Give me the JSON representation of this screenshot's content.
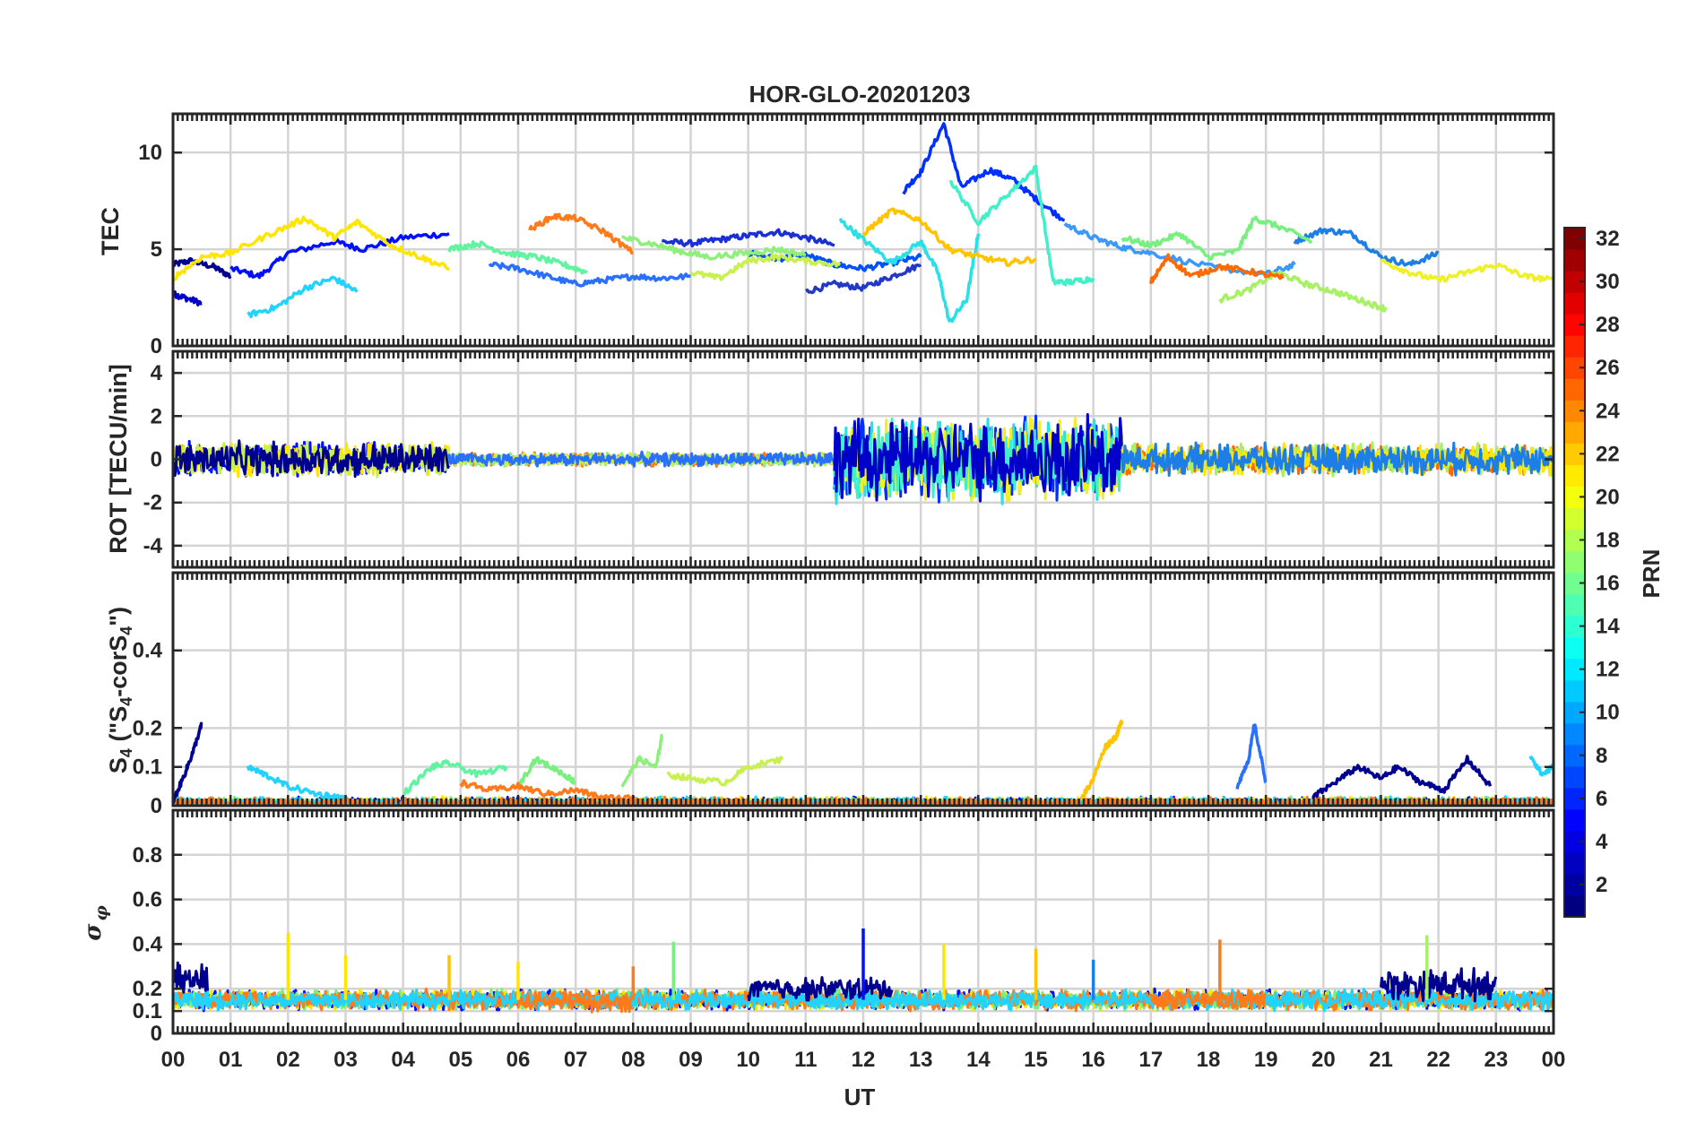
{
  "chart_data": [
    {
      "type": "line",
      "title": "HOR-GLO-20201203",
      "ylabel": "TEC",
      "ylim": [
        0,
        12
      ],
      "yticks": [
        "0",
        "5",
        "10"
      ],
      "yticks_values": [
        0,
        5,
        10
      ],
      "xlim": [
        0,
        24
      ],
      "grid": true,
      "series": [
        {
          "prn": 1,
          "color": "#00008f",
          "x": [
            0.0,
            0.3,
            0.7,
            1.0
          ],
          "y": [
            4.2,
            4.4,
            4.1,
            3.6
          ]
        },
        {
          "prn": 2,
          "color": "#0000c8",
          "x": [
            0.0,
            0.2,
            0.5
          ],
          "y": [
            2.7,
            2.5,
            2.2
          ]
        },
        {
          "prn": 3,
          "color": "#0010ff",
          "x": [
            1.0,
            1.5,
            2.0,
            2.8,
            3.3,
            4.0,
            4.8
          ],
          "y": [
            4.0,
            3.6,
            4.8,
            5.4,
            5.0,
            5.6,
            5.8
          ]
        },
        {
          "prn": 4,
          "color": "#1a2fd6",
          "x": [
            8.5,
            9.0,
            9.5,
            10.0,
            10.5,
            11.0,
            11.5
          ],
          "y": [
            5.4,
            5.3,
            5.5,
            5.7,
            5.9,
            5.6,
            5.2
          ]
        },
        {
          "prn": 5,
          "color": "#2238c8",
          "x": [
            11.0,
            11.5,
            12.0,
            12.5,
            13.0
          ],
          "y": [
            2.8,
            3.2,
            3.0,
            3.6,
            4.2
          ]
        },
        {
          "prn": 6,
          "color": "#0030ff",
          "x": [
            12.7,
            13.0,
            13.4,
            13.7,
            14.2,
            14.6,
            15.0,
            15.5
          ],
          "y": [
            8.0,
            9.0,
            11.5,
            8.2,
            9.1,
            8.6,
            7.6,
            6.5
          ]
        },
        {
          "prn": 7,
          "color": "#0050ff",
          "x": [
            10.0,
            10.5,
            11.0,
            11.5,
            12.0,
            12.5,
            13.0
          ],
          "y": [
            4.8,
            4.5,
            4.7,
            4.2,
            4.0,
            4.3,
            4.6
          ]
        },
        {
          "prn": 8,
          "color": "#2a70ff",
          "x": [
            5.5,
            6.0,
            6.5,
            7.0,
            7.5,
            8.0,
            8.5,
            9.0
          ],
          "y": [
            4.2,
            4.0,
            3.6,
            3.2,
            3.4,
            3.6,
            3.5,
            3.6
          ]
        },
        {
          "prn": 9,
          "color": "#1e7ee8",
          "x": [
            19.5,
            20.0,
            20.5,
            21.0,
            21.5,
            22.0
          ],
          "y": [
            5.4,
            6.0,
            5.8,
            4.6,
            4.2,
            4.8
          ]
        },
        {
          "prn": 10,
          "color": "#3a98ff",
          "x": [
            15.5,
            16.0,
            16.5,
            17.0,
            18.0,
            19.0,
            19.5
          ],
          "y": [
            6.3,
            5.6,
            5.1,
            4.8,
            4.1,
            3.7,
            4.2
          ]
        },
        {
          "prn": 12,
          "color": "#20d4ff",
          "x": [
            1.3,
            1.8,
            2.3,
            2.8,
            3.2
          ],
          "y": [
            1.6,
            2.0,
            3.0,
            3.5,
            2.8
          ]
        },
        {
          "prn": 13,
          "color": "#28e0e6",
          "x": [
            11.6,
            12.0,
            12.5,
            13.0,
            13.3,
            13.5,
            13.8,
            14.0
          ],
          "y": [
            6.5,
            5.5,
            4.3,
            5.4,
            3.8,
            1.2,
            2.4,
            5.8
          ]
        },
        {
          "prn": 14,
          "color": "#40f0c8",
          "x": [
            13.5,
            14.0,
            14.5,
            15.0,
            15.3,
            15.6,
            16.0
          ],
          "y": [
            8.6,
            6.4,
            7.8,
            9.2,
            3.3,
            3.3,
            3.5
          ]
        },
        {
          "prn": 15,
          "color": "#60f4a0",
          "x": [
            4.8,
            5.3,
            5.8,
            6.3,
            6.8,
            7.2
          ],
          "y": [
            5.0,
            5.3,
            4.8,
            4.6,
            4.2,
            3.8
          ]
        },
        {
          "prn": 16,
          "color": "#78f080",
          "x": [
            16.5,
            17.0,
            17.5,
            18.0,
            18.5,
            18.8,
            19.2,
            19.8
          ],
          "y": [
            5.6,
            5.2,
            5.8,
            4.6,
            4.9,
            6.6,
            6.2,
            5.4
          ]
        },
        {
          "prn": 17,
          "color": "#8ef07a",
          "x": [
            7.8,
            8.3,
            8.8,
            9.3,
            10.0,
            10.5,
            11.0
          ],
          "y": [
            5.6,
            5.3,
            4.9,
            4.6,
            4.8,
            5.0,
            4.7
          ]
        },
        {
          "prn": 18,
          "color": "#a8f064",
          "x": [
            18.2,
            18.7,
            19.2,
            19.7,
            20.2,
            20.7,
            21.1
          ],
          "y": [
            2.4,
            2.9,
            3.8,
            3.2,
            2.8,
            2.3,
            1.9
          ]
        },
        {
          "prn": 19,
          "color": "#c8f050",
          "x": [
            9.0,
            9.5,
            10.0,
            10.5,
            11.0,
            11.6
          ],
          "y": [
            3.8,
            3.5,
            4.4,
            4.6,
            4.4,
            4.2
          ]
        },
        {
          "prn": 20,
          "color": "#f0f028",
          "x": [
            21.0,
            21.5,
            22.0,
            22.5,
            23.0,
            23.5,
            24.0
          ],
          "y": [
            4.4,
            3.8,
            3.4,
            3.8,
            4.2,
            3.6,
            3.4
          ]
        },
        {
          "prn": 21,
          "color": "#ffe600",
          "x": [
            0.0,
            0.5,
            1.0,
            1.7,
            2.3,
            2.8,
            3.2,
            3.8,
            4.3,
            4.8
          ],
          "y": [
            3.5,
            4.6,
            4.8,
            5.8,
            6.6,
            5.6,
            6.4,
            5.2,
            4.6,
            4.0
          ]
        },
        {
          "prn": 22,
          "color": "#ffc400",
          "x": [
            12.0,
            12.5,
            13.0,
            13.5,
            14.0,
            14.5,
            15.0
          ],
          "y": [
            5.8,
            7.0,
            6.5,
            5.0,
            4.6,
            4.3,
            4.5
          ]
        },
        {
          "prn": 24,
          "color": "#ff7a1a",
          "x": [
            6.2,
            6.6,
            7.0,
            7.5,
            8.0
          ],
          "y": [
            6.0,
            6.7,
            6.6,
            5.9,
            4.8
          ]
        },
        {
          "prn": 25,
          "color": "#ff6a00",
          "x": [
            17.0,
            17.3,
            17.7,
            18.2,
            18.8,
            19.3
          ],
          "y": [
            3.3,
            4.6,
            3.6,
            4.1,
            3.8,
            3.5
          ]
        }
      ]
    },
    {
      "type": "line",
      "ylabel": "ROT [TECU/min]",
      "ylim": [
        -5,
        5
      ],
      "yticks": [
        "-4",
        "-2",
        "0",
        "2",
        "4"
      ],
      "yticks_values": [
        -4,
        -2,
        0,
        2,
        4
      ],
      "xlim": [
        0,
        24
      ],
      "grid": true,
      "noise_bands": [
        {
          "x0": 0.0,
          "x1": 4.8,
          "amp": 0.9,
          "colors": [
            "#0010ff",
            "#ffe600",
            "#c8f050",
            "#00008f"
          ]
        },
        {
          "x0": 4.8,
          "x1": 11.5,
          "amp": 0.35,
          "colors": [
            "#ff7a1a",
            "#8ef07a",
            "#c8f050",
            "#2a70ff"
          ]
        },
        {
          "x0": 11.5,
          "x1": 16.5,
          "amp": 2.1,
          "colors": [
            "#0030ff",
            "#28e0e6",
            "#f0f028",
            "#40f0c8",
            "#0000c8"
          ]
        },
        {
          "x0": 16.5,
          "x1": 24.0,
          "amp": 0.8,
          "colors": [
            "#ff6a00",
            "#a8f064",
            "#ffe600",
            "#1e7ee8"
          ]
        }
      ]
    },
    {
      "type": "line",
      "ylabel": "S4 (\"S4-corS4\")",
      "ylim": [
        0,
        0.6
      ],
      "yticks": [
        "0",
        "0.1",
        "0.2",
        "0.4"
      ],
      "yticks_values": [
        0,
        0.1,
        0.2,
        0.4
      ],
      "xlim": [
        0,
        24
      ],
      "grid": true,
      "series": [
        {
          "prn": 1,
          "color": "#00008f",
          "x": [
            0.0,
            0.2,
            0.35,
            0.5
          ],
          "y": [
            0.01,
            0.08,
            0.14,
            0.21
          ]
        },
        {
          "prn": 1,
          "color": "#00008f",
          "x": [
            19.8,
            20.2,
            20.6,
            21.0,
            21.3,
            21.7,
            22.1,
            22.5,
            22.9
          ],
          "y": [
            0.02,
            0.06,
            0.1,
            0.07,
            0.1,
            0.06,
            0.04,
            0.12,
            0.05
          ]
        },
        {
          "prn": 12,
          "color": "#20d4ff",
          "x": [
            1.3,
            1.6,
            2.0,
            2.5,
            3.0
          ],
          "y": [
            0.1,
            0.08,
            0.05,
            0.03,
            0.02
          ]
        },
        {
          "prn": 15,
          "color": "#60f4a0",
          "x": [
            4.0,
            4.5,
            4.8,
            5.3,
            5.8
          ],
          "y": [
            0.03,
            0.1,
            0.11,
            0.08,
            0.1
          ]
        },
        {
          "prn": 16,
          "color": "#78f080",
          "x": [
            6.0,
            6.3,
            6.7,
            7.0
          ],
          "y": [
            0.05,
            0.12,
            0.09,
            0.06
          ]
        },
        {
          "prn": 17,
          "color": "#8ef07a",
          "x": [
            7.8,
            8.1,
            8.4,
            8.5
          ],
          "y": [
            0.05,
            0.12,
            0.1,
            0.18
          ]
        },
        {
          "prn": 19,
          "color": "#c8f050",
          "x": [
            8.6,
            9.0,
            9.6,
            10.0,
            10.6
          ],
          "y": [
            0.08,
            0.07,
            0.06,
            0.1,
            0.12
          ]
        },
        {
          "prn": 22,
          "color": "#ffc400",
          "x": [
            15.8,
            16.0,
            16.2,
            16.4,
            16.5
          ],
          "y": [
            0.02,
            0.07,
            0.15,
            0.18,
            0.22
          ]
        },
        {
          "prn": 8,
          "color": "#2a70ff",
          "x": [
            18.5,
            18.7,
            18.8,
            19.0
          ],
          "y": [
            0.05,
            0.12,
            0.21,
            0.06
          ]
        },
        {
          "prn": 24,
          "color": "#ff7a1a",
          "x": [
            5.0,
            5.5,
            6.0,
            6.5,
            7.0,
            7.5,
            8.0
          ],
          "y": [
            0.06,
            0.04,
            0.05,
            0.03,
            0.04,
            0.02,
            0.02
          ]
        },
        {
          "prn": 12,
          "color": "#20d4ff",
          "x": [
            23.6,
            23.8,
            24.0
          ],
          "y": [
            0.13,
            0.08,
            0.1
          ]
        }
      ],
      "noise_bands": [
        {
          "x0": 0.0,
          "x1": 24.0,
          "amp": 0.04,
          "colors": [
            "#0010ff",
            "#ffe600",
            "#78f080",
            "#20d4ff",
            "#ff7a1a"
          ]
        }
      ]
    },
    {
      "type": "line",
      "ylabel": "σφ",
      "ylim": [
        0,
        1
      ],
      "yticks": [
        "0",
        "0.1",
        "0.2",
        "0.4",
        "0.6",
        "0.8"
      ],
      "yticks_values": [
        0,
        0.1,
        0.2,
        0.4,
        0.6,
        0.8
      ],
      "xlim": [
        0,
        24
      ],
      "grid": true,
      "xlabel": "UT",
      "xticks": [
        "00",
        "01",
        "02",
        "03",
        "04",
        "05",
        "06",
        "07",
        "08",
        "09",
        "10",
        "11",
        "12",
        "13",
        "14",
        "15",
        "16",
        "17",
        "18",
        "19",
        "20",
        "21",
        "22",
        "23",
        "00"
      ],
      "spikes": [
        {
          "x": 2.0,
          "y": 0.45,
          "color": "#ffe600"
        },
        {
          "x": 3.0,
          "y": 0.35,
          "color": "#ffe600"
        },
        {
          "x": 4.8,
          "y": 0.35,
          "color": "#ffc400"
        },
        {
          "x": 6.0,
          "y": 0.32,
          "color": "#ffe600"
        },
        {
          "x": 8.0,
          "y": 0.3,
          "color": "#ff7a1a"
        },
        {
          "x": 8.7,
          "y": 0.41,
          "color": "#78f080"
        },
        {
          "x": 12.0,
          "y": 0.47,
          "color": "#0010ff"
        },
        {
          "x": 13.4,
          "y": 0.4,
          "color": "#ffe600"
        },
        {
          "x": 15.0,
          "y": 0.38,
          "color": "#ffc400"
        },
        {
          "x": 16.0,
          "y": 0.33,
          "color": "#1e7ee8"
        },
        {
          "x": 18.2,
          "y": 0.42,
          "color": "#ff7a1a"
        },
        {
          "x": 21.8,
          "y": 0.44,
          "color": "#a8f064"
        }
      ],
      "noise_bands": [
        {
          "x0": 0.0,
          "x1": 24.0,
          "amp": 0.05,
          "base": 0.15,
          "colors": [
            "#0010ff",
            "#ffe600",
            "#78f080",
            "#ff7a1a",
            "#20d4ff"
          ]
        },
        {
          "x0": 6.0,
          "x1": 8.0,
          "amp": 0.05,
          "base": 0.14,
          "colors": [
            "#ff7a1a"
          ]
        },
        {
          "x0": 17.0,
          "x1": 19.0,
          "amp": 0.05,
          "base": 0.15,
          "colors": [
            "#ff7a1a"
          ]
        },
        {
          "x0": 10.0,
          "x1": 12.5,
          "amp": 0.06,
          "base": 0.2,
          "colors": [
            "#00008f"
          ]
        },
        {
          "x0": 21.0,
          "x1": 23.0,
          "amp": 0.08,
          "base": 0.22,
          "colors": [
            "#00008f"
          ]
        },
        {
          "x0": 0.0,
          "x1": 0.6,
          "amp": 0.08,
          "base": 0.24,
          "colors": [
            "#00008f"
          ]
        }
      ]
    }
  ],
  "colorbar": {
    "label": "PRN",
    "range": [
      1,
      32
    ],
    "ticks": [
      "2",
      "4",
      "6",
      "8",
      "10",
      "12",
      "14",
      "16",
      "18",
      "20",
      "22",
      "24",
      "26",
      "28",
      "30",
      "32"
    ],
    "colormap": "jet"
  }
}
